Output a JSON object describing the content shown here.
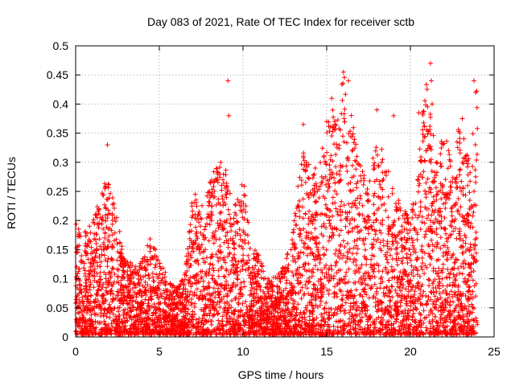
{
  "chart_data": {
    "type": "scatter",
    "title": "Day 083 of 2021, Rate Of TEC Index for receiver sctb",
    "xlabel": "GPS time / hours",
    "ylabel": "ROTI / TECUs",
    "xlim": [
      0,
      25
    ],
    "ylim": [
      0,
      0.5
    ],
    "xticks": [
      0,
      5,
      10,
      15,
      20,
      25
    ],
    "yticks": [
      0,
      0.05,
      0.1,
      0.15,
      0.2,
      0.25,
      0.3,
      0.35,
      0.4,
      0.45,
      0.5
    ],
    "xtick_labels": [
      "0",
      "5",
      "10",
      "15",
      "20",
      "25"
    ],
    "ytick_labels": [
      "0",
      "0.05",
      "0.1",
      "0.15",
      "0.2",
      "0.25",
      "0.3",
      "0.35",
      "0.4",
      "0.45",
      "0.5"
    ],
    "grid": true,
    "marker": "+",
    "color": "#ff0000",
    "series": [
      {
        "envelope": {
          "hours": [
            0,
            0.5,
            1,
            1.5,
            2,
            2.5,
            3,
            3.5,
            4,
            4.5,
            5,
            5.5,
            6,
            6.5,
            7,
            7.5,
            8,
            8.5,
            9,
            9.5,
            10,
            10.5,
            11,
            11.5,
            12,
            12.5,
            13,
            13.5,
            14,
            14.5,
            15,
            15.5,
            16,
            16.5,
            17,
            17.5,
            18,
            18.5,
            19,
            19.5,
            20,
            20.5,
            21,
            21.5,
            22,
            22.5,
            23,
            23.5,
            24
          ],
          "max_roti": [
            0.2,
            0.18,
            0.19,
            0.25,
            0.28,
            0.2,
            0.13,
            0.12,
            0.13,
            0.17,
            0.13,
            0.1,
            0.08,
            0.1,
            0.25,
            0.22,
            0.26,
            0.3,
            0.29,
            0.22,
            0.28,
            0.15,
            0.14,
            0.1,
            0.1,
            0.12,
            0.18,
            0.32,
            0.3,
            0.28,
            0.37,
            0.4,
            0.45,
            0.38,
            0.3,
            0.25,
            0.35,
            0.3,
            0.25,
            0.22,
            0.2,
            0.3,
            0.47,
            0.3,
            0.35,
            0.32,
            0.37,
            0.3,
            0.44
          ]
        },
        "outliers": [
          {
            "x": 1.9,
            "y": 0.33
          },
          {
            "x": 9.1,
            "y": 0.44
          },
          {
            "x": 9.15,
            "y": 0.38
          },
          {
            "x": 13.6,
            "y": 0.365
          },
          {
            "x": 15.0,
            "y": 0.37
          },
          {
            "x": 15.3,
            "y": 0.41
          },
          {
            "x": 16.0,
            "y": 0.455
          },
          {
            "x": 16.3,
            "y": 0.44
          },
          {
            "x": 18.0,
            "y": 0.39
          },
          {
            "x": 19.0,
            "y": 0.38
          },
          {
            "x": 20.5,
            "y": 0.385
          },
          {
            "x": 21.2,
            "y": 0.47
          },
          {
            "x": 21.25,
            "y": 0.44
          },
          {
            "x": 21.3,
            "y": 0.4
          },
          {
            "x": 23.1,
            "y": 0.375
          },
          {
            "x": 23.8,
            "y": 0.44
          },
          {
            "x": 23.9,
            "y": 0.42
          }
        ]
      }
    ]
  }
}
